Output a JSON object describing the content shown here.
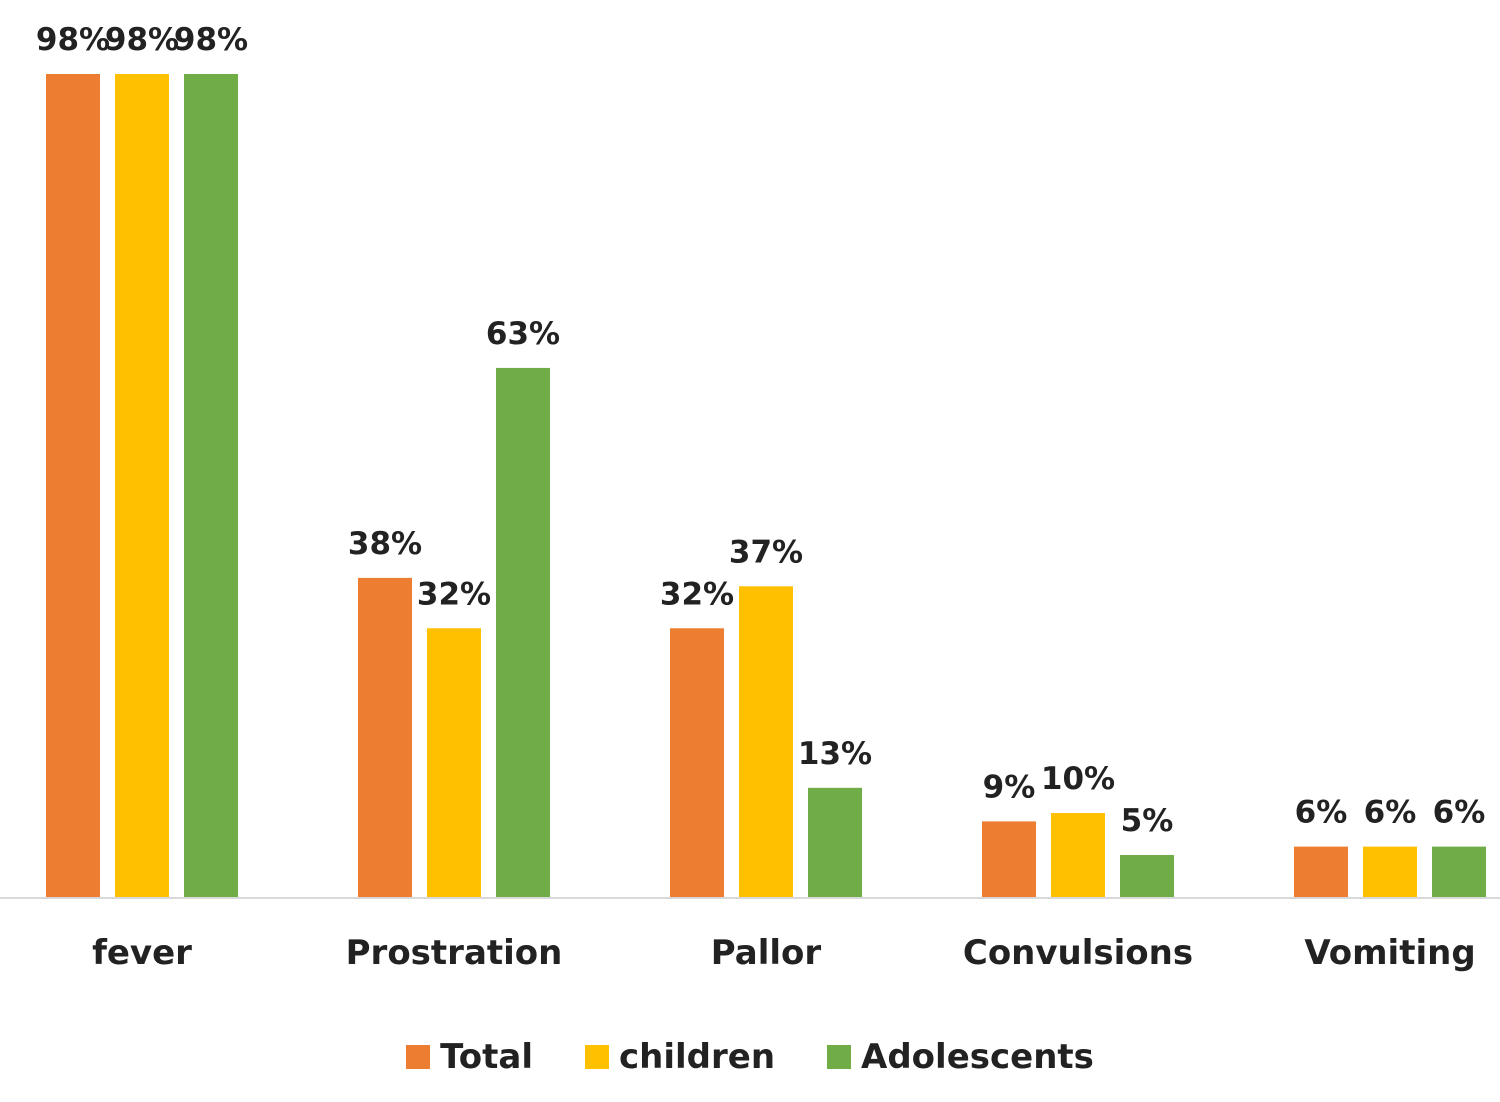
{
  "chart_data": {
    "type": "bar",
    "title": "",
    "xlabel": "",
    "ylabel": "",
    "ylim": [
      0,
      100
    ],
    "grid": false,
    "legend_position": "bottom",
    "categories": [
      "fever",
      "Prostration",
      "Pallor",
      "Convulsions",
      "Vomiting"
    ],
    "series": [
      {
        "name": "Total",
        "color": "#ED7D31",
        "values": [
          98,
          38,
          32,
          9,
          6
        ],
        "labels": [
          "98%",
          "38%",
          "32%",
          "9%",
          "6%"
        ]
      },
      {
        "name": "children",
        "color": "#FFC000",
        "values": [
          98,
          32,
          37,
          10,
          6
        ],
        "labels": [
          "98%",
          "32%",
          "37%",
          "10%",
          "6%"
        ]
      },
      {
        "name": "Adolescents",
        "color": "#70AD47",
        "values": [
          98,
          63,
          13,
          5,
          6
        ],
        "labels": [
          "98%",
          "63%",
          "13%",
          "5%",
          "6%"
        ]
      }
    ]
  }
}
